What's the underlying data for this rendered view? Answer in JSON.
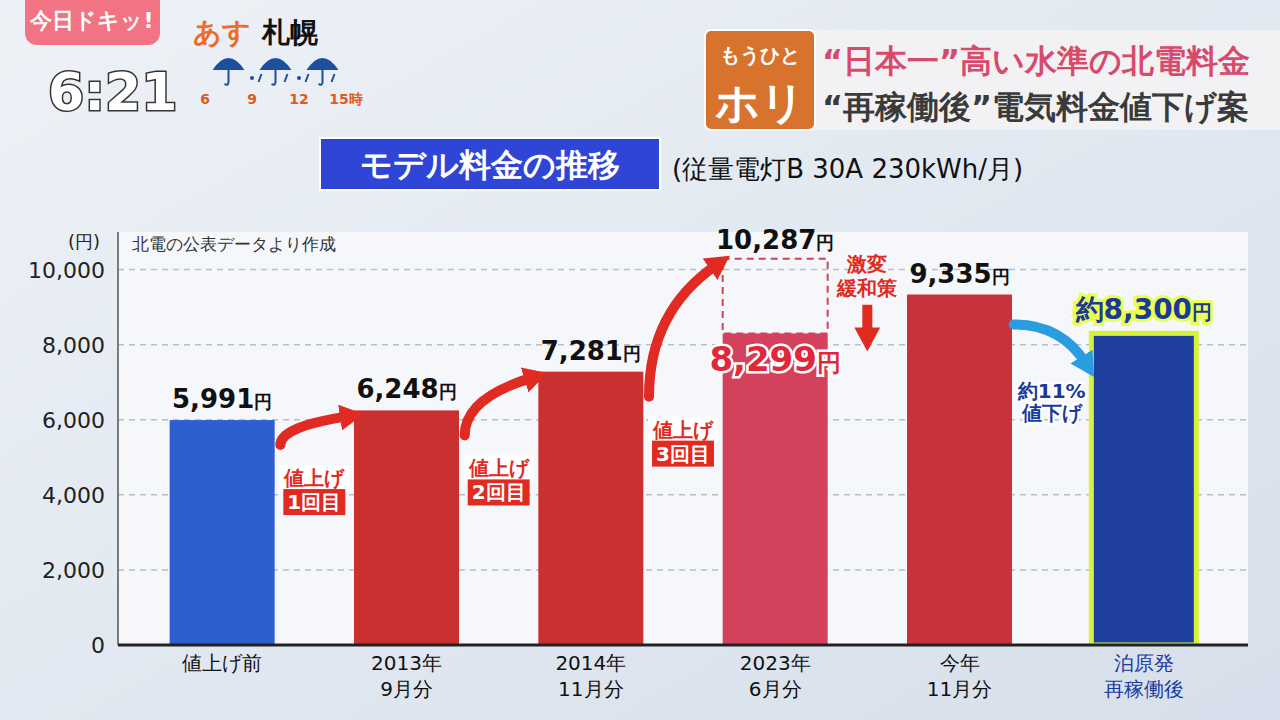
{
  "screen": {
    "logo": "今日ドキッ!",
    "time": "6:21",
    "weather": {
      "day": "あす",
      "city": "札幌",
      "hours": [
        "6",
        "9",
        "12",
        "15時"
      ]
    },
    "corner": [
      "もうひと",
      "ホリ"
    ],
    "headlines": [
      "“日本一”高い水準の北電料金",
      "“再稼働後”電気料金値下げ案"
    ]
  },
  "chart_data": {
    "type": "bar",
    "title": "モデル料金の推移",
    "subtitle": "(従量電灯B 30A 230kWh/月)",
    "y_label": "(円)",
    "source": "北電の公表データより作成",
    "categories": [
      "値上げ前",
      "2013年\n9月分",
      "2014年\n11月分",
      "2023年\n6月分",
      "今年\n11月分",
      "泊原発\n再稼働後"
    ],
    "values": [
      5991,
      6248,
      7281,
      8299,
      9335,
      8300
    ],
    "colors": [
      "#2f5fcf",
      "#c9302f",
      "#c9302f",
      "#d3415c",
      "#c8333b",
      "#1f3f9f"
    ],
    "value_labels": [
      "5,991円",
      "6,248円",
      "7,281円",
      "8,299円",
      "9,335円",
      "約8,300円"
    ],
    "data_labels": true,
    "dashed_values": [
      null,
      null,
      null,
      10287,
      null,
      null
    ],
    "dashed_value_labels": [
      null,
      null,
      null,
      "10,287円",
      null,
      null
    ],
    "ylim": [
      0,
      11000
    ],
    "yticks": [
      0,
      {
        "value": 2000,
        "label": "2,000"
      },
      {
        "value": 4000,
        "label": "4,000"
      },
      {
        "value": 6000,
        "label": "6,000"
      },
      {
        "value": 8000,
        "label": "8,000"
      },
      {
        "value": 10000,
        "label": "10,000"
      }
    ],
    "grid": true,
    "annotations": [
      {
        "text": [
          "値上げ",
          "1回目"
        ],
        "between": [
          0,
          1
        ],
        "color": "#e02a22"
      },
      {
        "text": [
          "値上げ",
          "2回目"
        ],
        "between": [
          1,
          2
        ],
        "color": "#e02a22"
      },
      {
        "text": [
          "値上げ",
          "3回目"
        ],
        "between": [
          2,
          3
        ],
        "color": "#e02a22"
      },
      {
        "text": [
          "激変",
          "緩和策"
        ],
        "at": 3,
        "color": "#e02a22"
      },
      {
        "text": [
          "約11%",
          "値下げ"
        ],
        "between": [
          4,
          5
        ],
        "color": "#2a9de0"
      }
    ]
  }
}
